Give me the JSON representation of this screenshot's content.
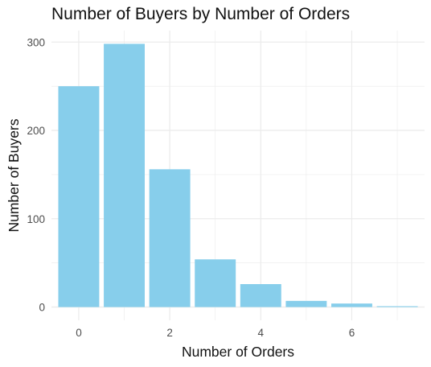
{
  "chart_data": {
    "type": "bar",
    "title": "Number of Buyers by Number of Orders",
    "xlabel": "Number of Orders",
    "ylabel": "Number of Buyers",
    "categories": [
      0,
      1,
      2,
      3,
      4,
      5,
      6,
      7
    ],
    "values": [
      250,
      298,
      156,
      54,
      26,
      7,
      4,
      1
    ],
    "xlim": [
      -0.6,
      7.6
    ],
    "ylim": [
      -15,
      313
    ],
    "x_ticks": [
      0,
      2,
      4,
      6
    ],
    "y_ticks": [
      0,
      100,
      200,
      300
    ],
    "grid": true,
    "bar_color": "#87CEEB",
    "grid_color": "#ebebeb"
  }
}
